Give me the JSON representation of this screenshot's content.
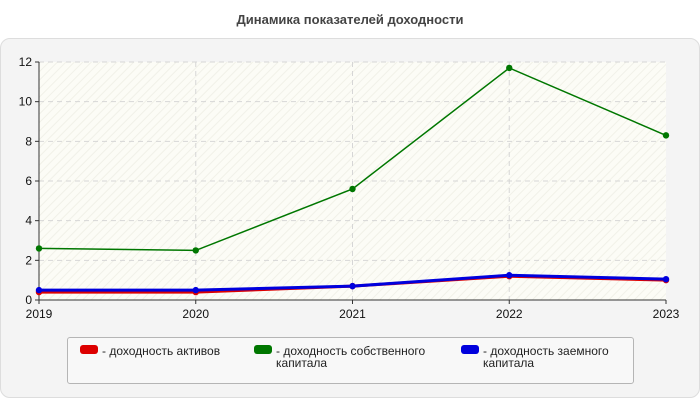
{
  "chart_data": {
    "type": "line",
    "title": "Динамика показателей доходности",
    "x": [
      2019,
      2020,
      2021,
      2022,
      2023
    ],
    "x_tick_labels": [
      "2019",
      "2020",
      "2021",
      "2022",
      "2023"
    ],
    "ylim": [
      0,
      12
    ],
    "y_ticks": [
      0,
      2,
      4,
      6,
      8,
      10,
      12
    ],
    "grid": true,
    "legend_position": "bottom",
    "series": [
      {
        "name": "- доходность активов",
        "color": "#dd0000",
        "values": [
          0.4,
          0.4,
          0.7,
          1.2,
          1.0
        ]
      },
      {
        "name": "- доходность собственного капитала",
        "color": "#007700",
        "values": [
          2.6,
          2.5,
          5.6,
          11.7,
          8.3
        ]
      },
      {
        "name": "- доходность заемного капитала",
        "color": "#0000dd",
        "values": [
          0.5,
          0.5,
          0.7,
          1.25,
          1.05
        ]
      }
    ]
  }
}
